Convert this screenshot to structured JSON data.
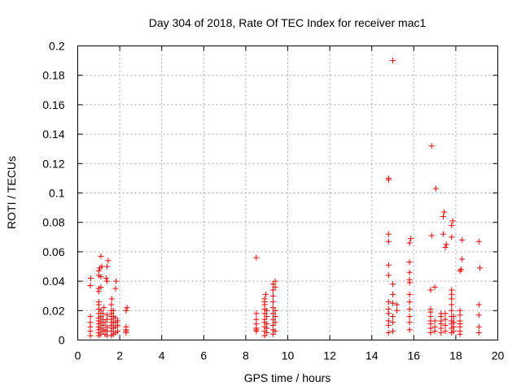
{
  "chart_data": {
    "type": "scatter",
    "title": "Day 304 of 2018, Rate Of TEC Index for receiver mac1",
    "xlabel": "GPS time / hours",
    "ylabel": "ROTI / TECUs",
    "xlim": [
      0,
      20
    ],
    "ylim": [
      0,
      0.2
    ],
    "xticks": [
      0,
      2,
      4,
      6,
      8,
      10,
      12,
      14,
      16,
      18,
      20
    ],
    "yticks": [
      0,
      0.02,
      0.04,
      0.06,
      0.08,
      0.1,
      0.12,
      0.14,
      0.16,
      0.18,
      0.2
    ],
    "ytick_labels": [
      "0",
      "0.02",
      "0.04",
      "0.06",
      "0.08",
      "0.1",
      "0.12",
      "0.14",
      "0.16",
      "0.18",
      "0.2"
    ],
    "grid": true,
    "marker": "+",
    "color": "#ff0000",
    "series": [
      {
        "name": "mac1",
        "points": [
          [
            0.6,
            0.003
          ],
          [
            0.6,
            0.006
          ],
          [
            0.6,
            0.009
          ],
          [
            0.6,
            0.012
          ],
          [
            0.6,
            0.016
          ],
          [
            0.6,
            0.037
          ],
          [
            0.62,
            0.042
          ],
          [
            1.0,
            0.003
          ],
          [
            1.0,
            0.005
          ],
          [
            1.0,
            0.007
          ],
          [
            1.0,
            0.009
          ],
          [
            1.0,
            0.011
          ],
          [
            1.0,
            0.013
          ],
          [
            1.0,
            0.015
          ],
          [
            1.0,
            0.018
          ],
          [
            1.0,
            0.021
          ],
          [
            1.0,
            0.024
          ],
          [
            1.0,
            0.026
          ],
          [
            1.0,
            0.033
          ],
          [
            1.0,
            0.035
          ],
          [
            1.0,
            0.044
          ],
          [
            1.0,
            0.047
          ],
          [
            1.05,
            0.049
          ],
          [
            1.1,
            0.057
          ],
          [
            1.1,
            0.004
          ],
          [
            1.1,
            0.008
          ],
          [
            1.1,
            0.012
          ],
          [
            1.1,
            0.016
          ],
          [
            1.1,
            0.02
          ],
          [
            1.1,
            0.036
          ],
          [
            1.1,
            0.043
          ],
          [
            1.15,
            0.05
          ],
          [
            1.2,
            0.006
          ],
          [
            1.2,
            0.01
          ],
          [
            1.2,
            0.014
          ],
          [
            1.2,
            0.018
          ],
          [
            1.25,
            0.022
          ],
          [
            1.3,
            0.004
          ],
          [
            1.3,
            0.007
          ],
          [
            1.3,
            0.012
          ],
          [
            1.35,
            0.042
          ],
          [
            1.4,
            0.04
          ],
          [
            1.4,
            0.05
          ],
          [
            1.45,
            0.054
          ],
          [
            1.4,
            0.003
          ],
          [
            1.4,
            0.006
          ],
          [
            1.4,
            0.009
          ],
          [
            1.4,
            0.014
          ],
          [
            1.4,
            0.017
          ],
          [
            1.6,
            0.003
          ],
          [
            1.6,
            0.006
          ],
          [
            1.6,
            0.008
          ],
          [
            1.6,
            0.01
          ],
          [
            1.6,
            0.012
          ],
          [
            1.6,
            0.014
          ],
          [
            1.6,
            0.016
          ],
          [
            1.6,
            0.018
          ],
          [
            1.6,
            0.02
          ],
          [
            1.6,
            0.024
          ],
          [
            1.62,
            0.028
          ],
          [
            1.7,
            0.004
          ],
          [
            1.7,
            0.008
          ],
          [
            1.7,
            0.012
          ],
          [
            1.7,
            0.016
          ],
          [
            1.7,
            0.02
          ],
          [
            1.8,
            0.005
          ],
          [
            1.8,
            0.009
          ],
          [
            1.8,
            0.012
          ],
          [
            1.8,
            0.015
          ],
          [
            1.8,
            0.035
          ],
          [
            1.82,
            0.04
          ],
          [
            1.9,
            0.006
          ],
          [
            1.9,
            0.01
          ],
          [
            1.9,
            0.013
          ],
          [
            2.3,
            0.005
          ],
          [
            2.3,
            0.006
          ],
          [
            2.3,
            0.007
          ],
          [
            2.3,
            0.009
          ],
          [
            2.3,
            0.02
          ],
          [
            2.35,
            0.022
          ],
          [
            8.5,
            0.006
          ],
          [
            8.5,
            0.007
          ],
          [
            8.5,
            0.008
          ],
          [
            8.5,
            0.011
          ],
          [
            8.5,
            0.014
          ],
          [
            8.5,
            0.018
          ],
          [
            8.5,
            0.056
          ],
          [
            8.9,
            0.003
          ],
          [
            8.9,
            0.006
          ],
          [
            8.9,
            0.009
          ],
          [
            8.9,
            0.012
          ],
          [
            8.9,
            0.014
          ],
          [
            8.9,
            0.018
          ],
          [
            8.9,
            0.021
          ],
          [
            8.9,
            0.024
          ],
          [
            8.9,
            0.026
          ],
          [
            8.9,
            0.028
          ],
          [
            8.95,
            0.031
          ],
          [
            9.0,
            0.005
          ],
          [
            9.0,
            0.008
          ],
          [
            9.0,
            0.011
          ],
          [
            9.0,
            0.016
          ],
          [
            9.0,
            0.02
          ],
          [
            9.3,
            0.004
          ],
          [
            9.3,
            0.007
          ],
          [
            9.3,
            0.01
          ],
          [
            9.3,
            0.014
          ],
          [
            9.3,
            0.018
          ],
          [
            9.3,
            0.022
          ],
          [
            9.3,
            0.026
          ],
          [
            9.3,
            0.03
          ],
          [
            9.3,
            0.034
          ],
          [
            9.3,
            0.038
          ],
          [
            9.4,
            0.006
          ],
          [
            9.4,
            0.012
          ],
          [
            9.4,
            0.016
          ],
          [
            9.4,
            0.02
          ],
          [
            9.4,
            0.036
          ],
          [
            9.4,
            0.04
          ],
          [
            14.8,
            0.005
          ],
          [
            14.8,
            0.01
          ],
          [
            14.8,
            0.013
          ],
          [
            14.8,
            0.018
          ],
          [
            14.8,
            0.021
          ],
          [
            14.8,
            0.026
          ],
          [
            14.8,
            0.044
          ],
          [
            14.8,
            0.051
          ],
          [
            14.8,
            0.067
          ],
          [
            14.8,
            0.072
          ],
          [
            14.8,
            0.109
          ],
          [
            14.8,
            0.11
          ],
          [
            15.0,
            0.006
          ],
          [
            15.0,
            0.012
          ],
          [
            15.0,
            0.016
          ],
          [
            15.0,
            0.025
          ],
          [
            15.0,
            0.031
          ],
          [
            15.0,
            0.038
          ],
          [
            15.0,
            0.19
          ],
          [
            15.2,
            0.02
          ],
          [
            15.2,
            0.024
          ],
          [
            15.8,
            0.007
          ],
          [
            15.8,
            0.012
          ],
          [
            15.8,
            0.016
          ],
          [
            15.8,
            0.021
          ],
          [
            15.8,
            0.026
          ],
          [
            15.8,
            0.031
          ],
          [
            15.8,
            0.039
          ],
          [
            15.8,
            0.041
          ],
          [
            15.8,
            0.046
          ],
          [
            15.8,
            0.053
          ],
          [
            15.8,
            0.066
          ],
          [
            15.85,
            0.069
          ],
          [
            16.8,
            0.005
          ],
          [
            16.8,
            0.008
          ],
          [
            16.8,
            0.011
          ],
          [
            16.8,
            0.013
          ],
          [
            16.8,
            0.016
          ],
          [
            16.8,
            0.019
          ],
          [
            16.8,
            0.021
          ],
          [
            16.8,
            0.034
          ],
          [
            16.85,
            0.071
          ],
          [
            16.85,
            0.132
          ],
          [
            17.0,
            0.006
          ],
          [
            17.0,
            0.009
          ],
          [
            17.0,
            0.013
          ],
          [
            17.0,
            0.036
          ],
          [
            17.05,
            0.103
          ],
          [
            17.3,
            0.005
          ],
          [
            17.3,
            0.008
          ],
          [
            17.3,
            0.011
          ],
          [
            17.3,
            0.013
          ],
          [
            17.3,
            0.016
          ],
          [
            17.3,
            0.018
          ],
          [
            17.4,
            0.072
          ],
          [
            17.4,
            0.084
          ],
          [
            17.45,
            0.087
          ],
          [
            17.5,
            0.006
          ],
          [
            17.5,
            0.01
          ],
          [
            17.5,
            0.014
          ],
          [
            17.5,
            0.018
          ],
          [
            17.5,
            0.063
          ],
          [
            17.55,
            0.065
          ],
          [
            17.8,
            0.005
          ],
          [
            17.8,
            0.008
          ],
          [
            17.8,
            0.011
          ],
          [
            17.8,
            0.013
          ],
          [
            17.8,
            0.016
          ],
          [
            17.8,
            0.02
          ],
          [
            17.8,
            0.024
          ],
          [
            17.8,
            0.028
          ],
          [
            17.8,
            0.031
          ],
          [
            17.8,
            0.034
          ],
          [
            17.8,
            0.07
          ],
          [
            17.8,
            0.078
          ],
          [
            17.85,
            0.081
          ],
          [
            17.9,
            0.006
          ],
          [
            17.9,
            0.009
          ],
          [
            17.9,
            0.012
          ],
          [
            17.9,
            0.016
          ],
          [
            18.2,
            0.004
          ],
          [
            18.2,
            0.006
          ],
          [
            18.2,
            0.009
          ],
          [
            18.2,
            0.011
          ],
          [
            18.2,
            0.013
          ],
          [
            18.2,
            0.017
          ],
          [
            18.2,
            0.02
          ],
          [
            18.2,
            0.047
          ],
          [
            18.25,
            0.048
          ],
          [
            18.3,
            0.055
          ],
          [
            18.3,
            0.068
          ],
          [
            19.1,
            0.005
          ],
          [
            19.1,
            0.009
          ],
          [
            19.1,
            0.017
          ],
          [
            19.1,
            0.024
          ],
          [
            19.15,
            0.049
          ],
          [
            19.1,
            0.067
          ]
        ]
      }
    ]
  }
}
